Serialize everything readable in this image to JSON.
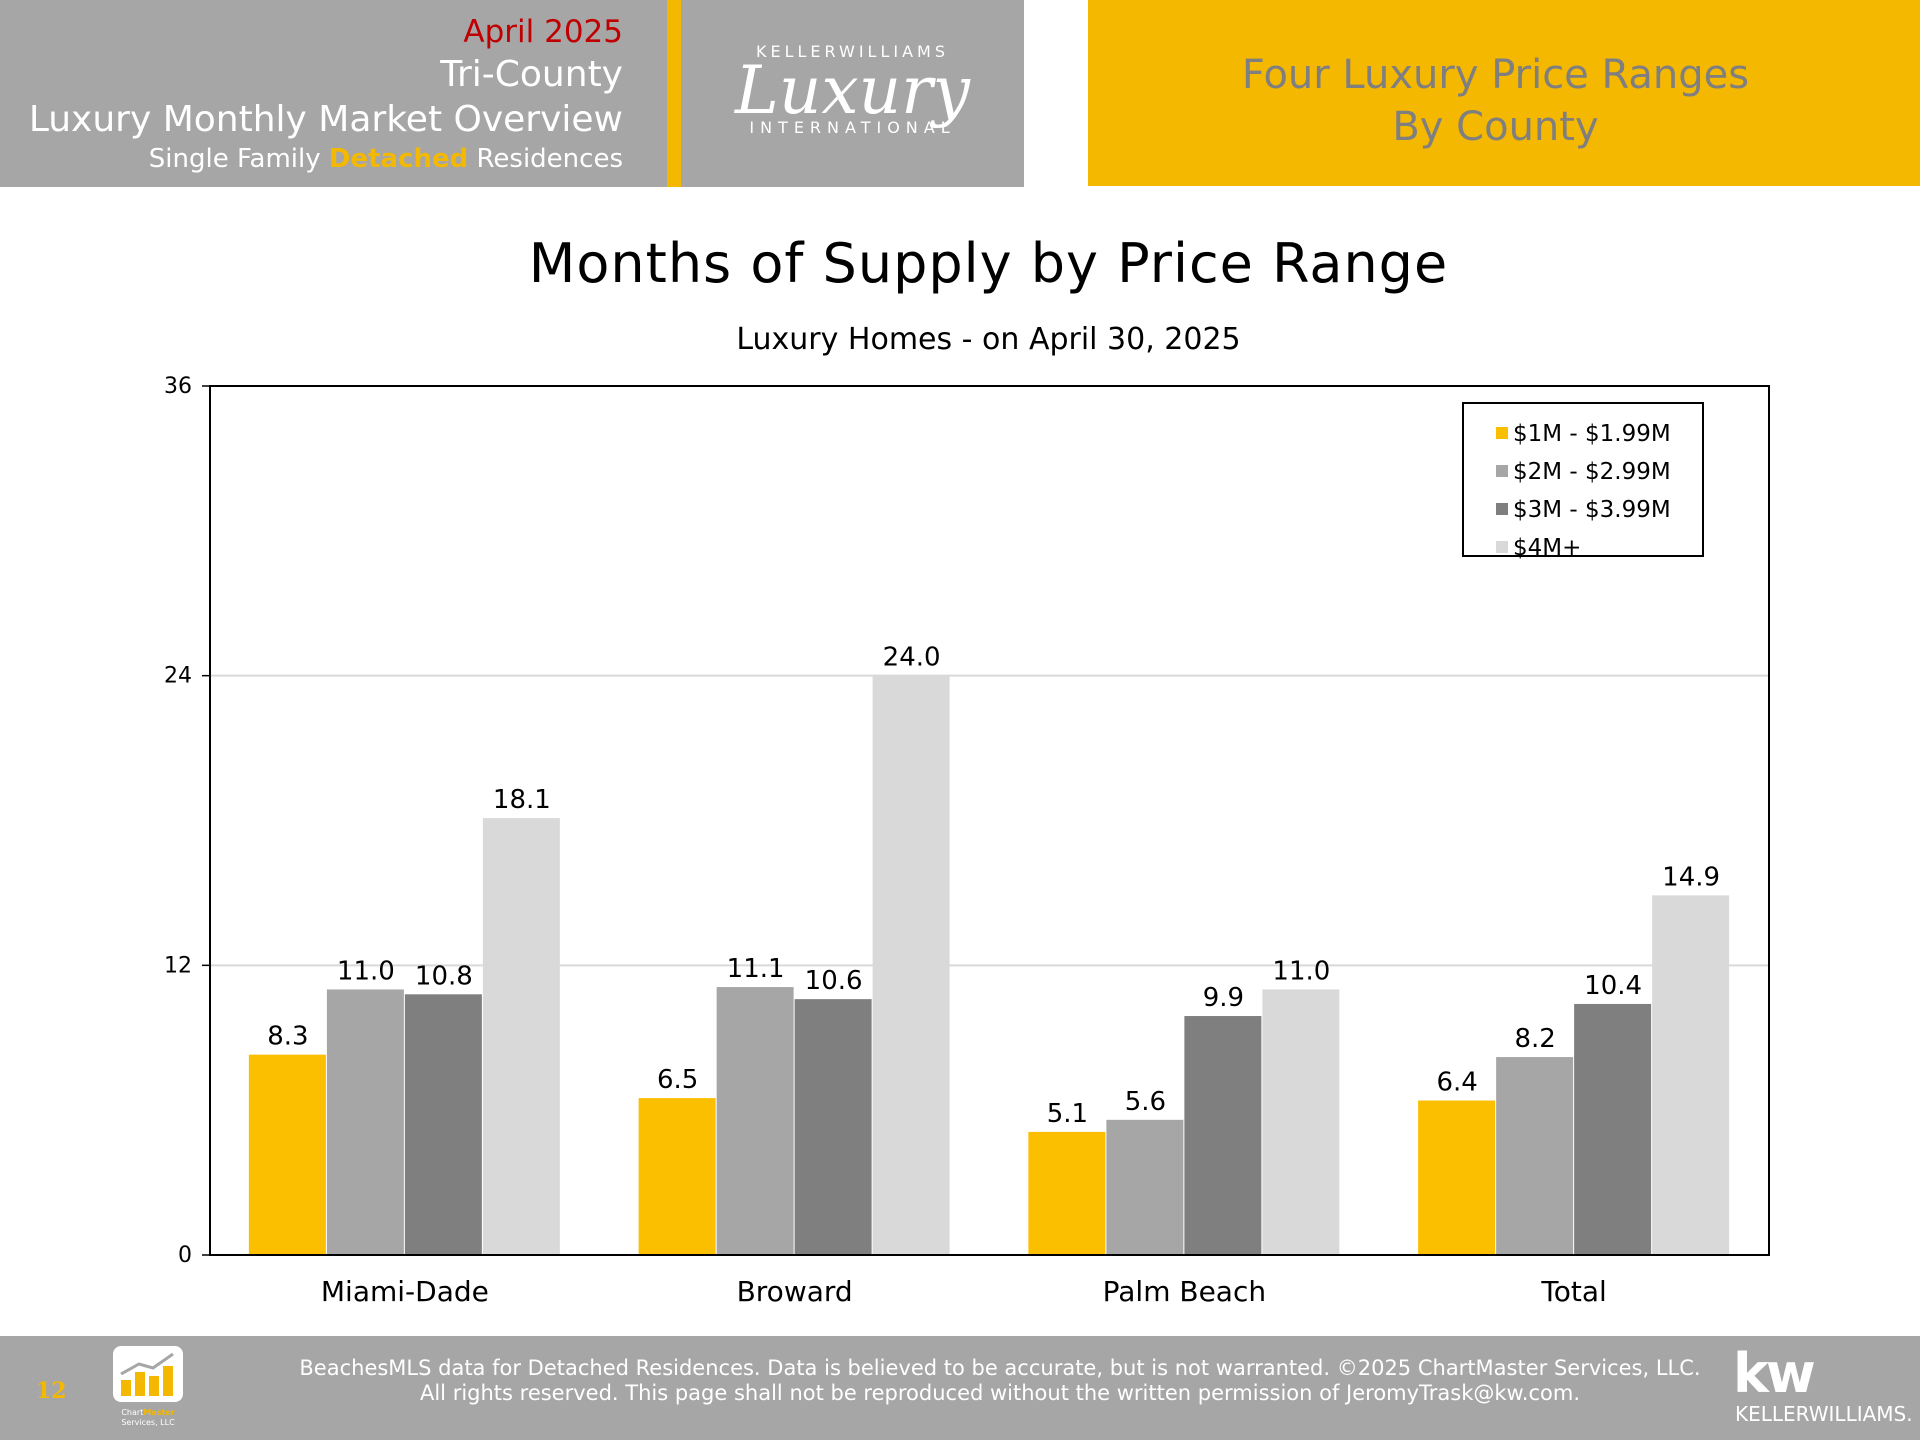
{
  "header": {
    "month": "April 2025",
    "region": "Tri-County",
    "overview": "Luxury Monthly Market Overview",
    "subtitle_pre": "Single Family ",
    "subtitle_bold": "Detached",
    "subtitle_post": " Residences",
    "logo_top": "KELLERWILLIAMS",
    "logo_main": "Luxury",
    "logo_bottom": "INTERNATIONAL",
    "right_line1": "Four Luxury Price Ranges",
    "right_line2": "By County"
  },
  "colors": {
    "accent": "#f5b800",
    "header_gray": "#a6a6a6",
    "month_red": "#c00000",
    "series": [
      "#fcbf00",
      "#a6a6a6",
      "#7f7f7f",
      "#d9d9d9"
    ]
  },
  "chart_data": {
    "type": "bar",
    "title": "Months of Supply by Price Range",
    "subtitle": "Luxury Homes - on April 30, 2025",
    "categories": [
      "Miami-Dade",
      "Broward",
      "Palm Beach",
      "Total"
    ],
    "series": [
      {
        "name": "$1M - $1.99M",
        "values": [
          8.3,
          6.5,
          5.1,
          6.4
        ],
        "labels": [
          "8.3",
          "6.5",
          "5.1",
          "6.4"
        ]
      },
      {
        "name": "$2M - $2.99M",
        "values": [
          11.0,
          11.1,
          5.6,
          8.2
        ],
        "labels": [
          "11.0",
          "11.1",
          "5.6",
          "8.2"
        ]
      },
      {
        "name": "$3M - $3.99M",
        "values": [
          10.8,
          10.6,
          9.9,
          10.4
        ],
        "labels": [
          "10.8",
          "10.6",
          "9.9",
          "10.4"
        ]
      },
      {
        "name": "$4M+",
        "values": [
          18.1,
          24.0,
          11.0,
          14.9
        ],
        "labels": [
          "18.1",
          "24.0",
          "11.0",
          "14.9"
        ]
      }
    ],
    "ylim": [
      0,
      36
    ],
    "yticks": [
      "0",
      "12",
      "24",
      "36"
    ],
    "grid": true,
    "legend": "top-right"
  },
  "footer": {
    "page_number": "12",
    "chartmaster_line1_pre": "Chart",
    "chartmaster_line1_bold": "Master",
    "chartmaster_line2": "Services, LLC",
    "note_line1": "BeachesMLS data for Detached Residences.  Data is believed to be accurate, but is not warranted.   ©2025  ChartMaster Services, LLC.",
    "note_line2": "All rights reserved. This page shall not be reproduced without the written permission of JeromyTrask@kw.com.",
    "kw_logo": "kw",
    "kw_name": "KELLERWILLIAMS."
  }
}
